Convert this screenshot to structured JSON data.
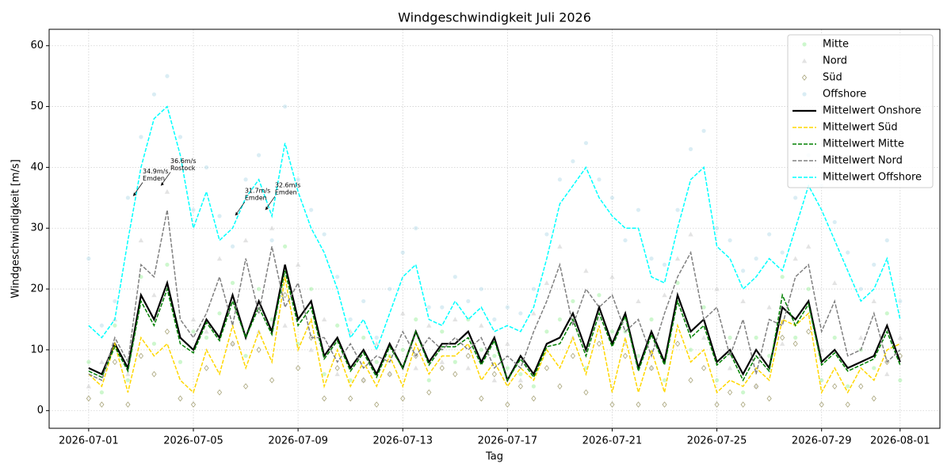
{
  "chart_data": {
    "type": "line",
    "title": "Windgeschwindigkeit Juli 2026",
    "xlabel": "Tag",
    "ylabel": "Windgeschwindigkeit [m/s]",
    "xlim": [
      -1.51,
      32.52
    ],
    "ylim": [
      -2.9,
      62.7
    ],
    "grid": true,
    "legend": "upper right",
    "xticks": [
      {
        "value": 0,
        "label": "2026-07-01"
      },
      {
        "value": 4,
        "label": "2026-07-05"
      },
      {
        "value": 8,
        "label": "2026-07-09"
      },
      {
        "value": 12,
        "label": "2026-07-13"
      },
      {
        "value": 16,
        "label": "2026-07-17"
      },
      {
        "value": 20,
        "label": "2026-07-21"
      },
      {
        "value": 24,
        "label": "2026-07-25"
      },
      {
        "value": 28,
        "label": "2026-07-29"
      },
      {
        "value": 31,
        "label": "2026-08-01"
      }
    ],
    "yticks": [
      0,
      10,
      20,
      30,
      40,
      50,
      60
    ],
    "x": [
      0,
      0.5,
      1,
      1.5,
      2,
      2.5,
      3,
      3.5,
      4,
      4.5,
      5,
      5.5,
      6,
      6.5,
      7,
      7.5,
      8,
      8.5,
      9,
      9.5,
      10,
      10.5,
      11,
      11.5,
      12,
      12.5,
      13,
      13.5,
      14,
      14.5,
      15,
      15.5,
      16,
      16.5,
      17,
      17.5,
      18,
      18.5,
      19,
      19.5,
      20,
      20.5,
      21,
      21.5,
      22,
      22.5,
      23,
      23.5,
      24,
      24.5,
      25,
      25.5,
      26,
      26.5,
      27,
      27.5,
      28,
      28.5,
      29,
      29.5,
      30,
      30.5,
      31
    ],
    "series": [
      {
        "name": "Mitte",
        "kind": "scatter",
        "marker": "circle",
        "color": "#90ee90",
        "values": [
          8,
          3,
          14,
          5,
          22,
          11,
          24,
          8,
          13,
          12,
          16,
          21,
          9,
          20,
          15,
          27,
          11,
          20,
          6,
          14,
          5,
          12,
          8,
          9,
          10,
          15,
          5,
          13,
          8,
          15,
          10,
          9,
          7,
          6,
          4,
          13,
          15,
          18,
          7,
          19,
          13,
          13,
          9,
          15,
          5,
          21,
          10,
          17,
          5,
          12,
          3,
          12,
          9,
          22,
          12,
          20,
          5,
          12,
          4,
          10,
          7,
          16,
          5
        ]
      },
      {
        "name": "Nord",
        "kind": "scatter",
        "marker": "triangle",
        "color": "#c8c8c8",
        "values": [
          4,
          8,
          15,
          6,
          28,
          19,
          36,
          12,
          15,
          13,
          25,
          11,
          28,
          13,
          30,
          14,
          24,
          10,
          15,
          6,
          13,
          5,
          11,
          6,
          16,
          7,
          14,
          8,
          15,
          7,
          14,
          5,
          11,
          5,
          16,
          21,
          27,
          12,
          23,
          15,
          22,
          11,
          18,
          7,
          19,
          25,
          29,
          12,
          20,
          7,
          18,
          4,
          17,
          11,
          25,
          27,
          10,
          21,
          7,
          12,
          18,
          6,
          12
        ]
      },
      {
        "name": "Süd",
        "kind": "scatter",
        "marker": "diamond",
        "color": "#a8a47a",
        "values": [
          2,
          1,
          8,
          1,
          9,
          6,
          13,
          2,
          1,
          7,
          3,
          11,
          4,
          10,
          5,
          19,
          7,
          12,
          2,
          7,
          2,
          5,
          1,
          6,
          2,
          9,
          3,
          7,
          6,
          9,
          2,
          6,
          1,
          4,
          2,
          7,
          4,
          9,
          3,
          11,
          1,
          9,
          1,
          7,
          1,
          11,
          5,
          7,
          1,
          3,
          1,
          4,
          2,
          12,
          11,
          13,
          1,
          4,
          1,
          4,
          2,
          8,
          9
        ]
      },
      {
        "name": "Offshore",
        "kind": "scatter",
        "marker": "circle",
        "color": "#add8e6",
        "values": [
          25,
          14,
          18,
          35,
          45,
          52,
          55,
          45,
          33,
          40,
          32,
          27,
          38,
          42,
          28,
          50,
          38,
          33,
          29,
          22,
          15,
          18,
          12,
          20,
          26,
          30,
          17,
          17,
          22,
          18,
          20,
          15,
          17,
          16,
          20,
          29,
          38,
          41,
          44,
          38,
          35,
          28,
          33,
          25,
          24,
          33,
          43,
          46,
          30,
          28,
          23,
          25,
          29,
          26,
          35,
          42,
          37,
          31,
          26,
          20,
          24,
          28,
          18
        ]
      },
      {
        "name": "Mittelwert Onshore",
        "kind": "line",
        "dash": false,
        "color": "#000000",
        "values": [
          7,
          6,
          11,
          7,
          19,
          15,
          21,
          12,
          10,
          15,
          12,
          19,
          12,
          18,
          13,
          24,
          15,
          18,
          9,
          12,
          7,
          10,
          6,
          11,
          7,
          13,
          8,
          11,
          11,
          13,
          8,
          12,
          5,
          9,
          6,
          11,
          12,
          16,
          10,
          17,
          11,
          16,
          7,
          13,
          8,
          19,
          13,
          15,
          8,
          10,
          6,
          10,
          7,
          17,
          15,
          18,
          8,
          10,
          7,
          8,
          9,
          14,
          8
        ]
      },
      {
        "name": "Mittelwert Süd",
        "kind": "line",
        "dash": true,
        "color": "#ffd700",
        "values": [
          6,
          4,
          11,
          3,
          12,
          9,
          11,
          5,
          3,
          10,
          6,
          14,
          7,
          13,
          8,
          22,
          10,
          15,
          4,
          10,
          4,
          8,
          4,
          9,
          4,
          11,
          6,
          9,
          9,
          11,
          5,
          8,
          4,
          7,
          5,
          10,
          7,
          12,
          6,
          14,
          3,
          12,
          3,
          10,
          3,
          14,
          8,
          10,
          3,
          5,
          4,
          7,
          5,
          15,
          14,
          16,
          3,
          7,
          3,
          7,
          5,
          10,
          11
        ]
      },
      {
        "name": "Mittelwert Mitte",
        "kind": "line",
        "dash": true,
        "color": "#008000",
        "values": [
          6.5,
          5.5,
          10.5,
          6.5,
          18,
          14,
          20,
          11,
          9.5,
          14.5,
          11.5,
          18,
          12,
          17,
          12.5,
          23,
          14,
          17,
          8.5,
          11.5,
          6.5,
          9.5,
          5.5,
          10.5,
          7,
          13,
          7.5,
          10.5,
          10.5,
          12,
          7.5,
          11.5,
          5,
          8.5,
          5.5,
          10.5,
          11,
          15,
          9,
          16,
          10.5,
          15.5,
          6.5,
          12.5,
          7.5,
          18,
          12,
          14,
          7.5,
          9.5,
          5,
          9,
          6.5,
          19,
          14,
          17.5,
          7.5,
          9.5,
          6.5,
          7.5,
          8.5,
          13,
          7.5
        ]
      },
      {
        "name": "Mittelwert Nord",
        "kind": "line",
        "dash": true,
        "color": "#808080",
        "values": [
          6,
          5,
          12,
          8,
          24,
          22,
          33,
          15,
          12,
          16,
          22,
          14,
          25,
          16,
          27,
          17,
          21,
          12,
          12,
          8,
          11,
          7,
          9,
          8,
          13,
          9,
          12,
          10,
          12,
          10,
          12,
          7,
          9,
          7,
          13,
          18,
          24,
          14,
          20,
          17,
          19,
          13,
          15,
          9,
          16,
          22,
          26,
          15,
          17,
          9,
          15,
          6,
          15,
          14,
          22,
          24,
          13,
          18,
          9,
          10,
          16,
          8,
          10
        ]
      },
      {
        "name": "Mittelwert Offshore",
        "kind": "line",
        "dash": true,
        "color": "#00ffff",
        "values": [
          14,
          12,
          15,
          28,
          40,
          48,
          50,
          42,
          30,
          36,
          28,
          30,
          35,
          38,
          32,
          44,
          36,
          30,
          26,
          20,
          12,
          15,
          10,
          16,
          22,
          24,
          15,
          14,
          18,
          15,
          17,
          13,
          14,
          13,
          17,
          25,
          34,
          37,
          40,
          35,
          32,
          30,
          30,
          22,
          21,
          30,
          38,
          40,
          27,
          25,
          20,
          22,
          25,
          23,
          30,
          37,
          33,
          28,
          23,
          18,
          20,
          25,
          15
        ]
      }
    ],
    "annotations": [
      {
        "text": [
          "34.9m/s",
          "Emden"
        ],
        "x": 1.7,
        "y": 35.3
      },
      {
        "text": [
          "36.6m/s",
          "Rostock"
        ],
        "x": 2.76,
        "y": 37.0
      },
      {
        "text": [
          "31.7m/s",
          "Emden"
        ],
        "x": 5.6,
        "y": 32.1
      },
      {
        "text": [
          "32.6m/s",
          "Emden"
        ],
        "x": 6.75,
        "y": 33.0
      }
    ]
  }
}
